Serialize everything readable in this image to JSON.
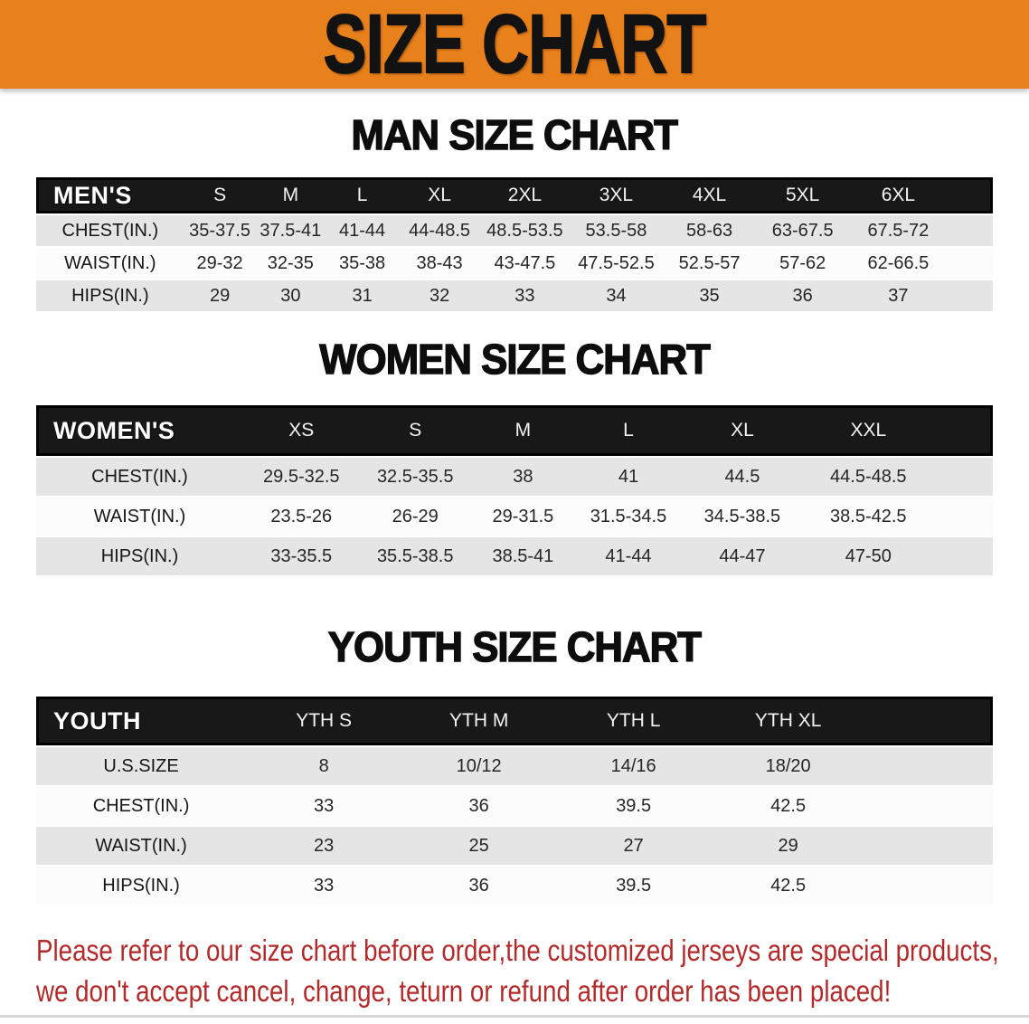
{
  "banner": {
    "title": "SIZE CHART"
  },
  "colors": {
    "banner_orange": "#E8811C",
    "header_black": "#181818",
    "row_gray": "#E4E5E4",
    "disclaimer_red": "#B22A2A"
  },
  "sections": [
    {
      "heading": "MAN SIZE CHART",
      "table": {
        "header_label": "MEN'S",
        "columns": [
          "S",
          "M",
          "L",
          "XL",
          "2XL",
          "3XL",
          "4XL",
          "5XL",
          "6XL"
        ],
        "rows": [
          {
            "label": "CHEST(IN.)",
            "values": [
              "35-37.5",
              "37.5-41",
              "41-44",
              "44-48.5",
              "48.5-53.5",
              "53.5-58",
              "58-63",
              "63-67.5",
              "67.5-72"
            ]
          },
          {
            "label": "WAIST(IN.)",
            "values": [
              "29-32",
              "32-35",
              "35-38",
              "38-43",
              "43-47.5",
              "47.5-52.5",
              "52.5-57",
              "57-62",
              "62-66.5"
            ]
          },
          {
            "label": "HIPS(IN.)",
            "values": [
              "29",
              "30",
              "31",
              "32",
              "33",
              "34",
              "35",
              "36",
              "37"
            ]
          }
        ]
      }
    },
    {
      "heading": "WOMEN SIZE CHART",
      "table": {
        "header_label": "WOMEN'S",
        "columns": [
          "XS",
          "S",
          "M",
          "L",
          "XL",
          "XXL"
        ],
        "rows": [
          {
            "label": "CHEST(IN.)",
            "values": [
              "29.5-32.5",
              "32.5-35.5",
              "38",
              "41",
              "44.5",
              "44.5-48.5"
            ]
          },
          {
            "label": "WAIST(IN.)",
            "values": [
              "23.5-26",
              "26-29",
              "29-31.5",
              "31.5-34.5",
              "34.5-38.5",
              "38.5-42.5"
            ]
          },
          {
            "label": "HIPS(IN.)",
            "values": [
              "33-35.5",
              "35.5-38.5",
              "38.5-41",
              "41-44",
              "44-47",
              "47-50"
            ]
          }
        ]
      }
    },
    {
      "heading": "YOUTH SIZE CHART",
      "table": {
        "header_label": "YOUTH",
        "columns": [
          "YTH S",
          "YTH M",
          "YTH L",
          "YTH XL"
        ],
        "rows": [
          {
            "label": "U.S.SIZE",
            "values": [
              "8",
              "10/12",
              "14/16",
              "18/20"
            ]
          },
          {
            "label": "CHEST(IN.)",
            "values": [
              "33",
              "36",
              "39.5",
              "42.5"
            ]
          },
          {
            "label": "WAIST(IN.)",
            "values": [
              "23",
              "25",
              "27",
              "29"
            ]
          },
          {
            "label": "HIPS(IN.)",
            "values": [
              "33",
              "36",
              "39.5",
              "42.5"
            ]
          }
        ]
      }
    }
  ],
  "footer": {
    "line1": "Please refer to our size chart before order,the customized jerseys are special products,",
    "line2": "we don't accept cancel, change, teturn or refund after order has been placed!"
  }
}
